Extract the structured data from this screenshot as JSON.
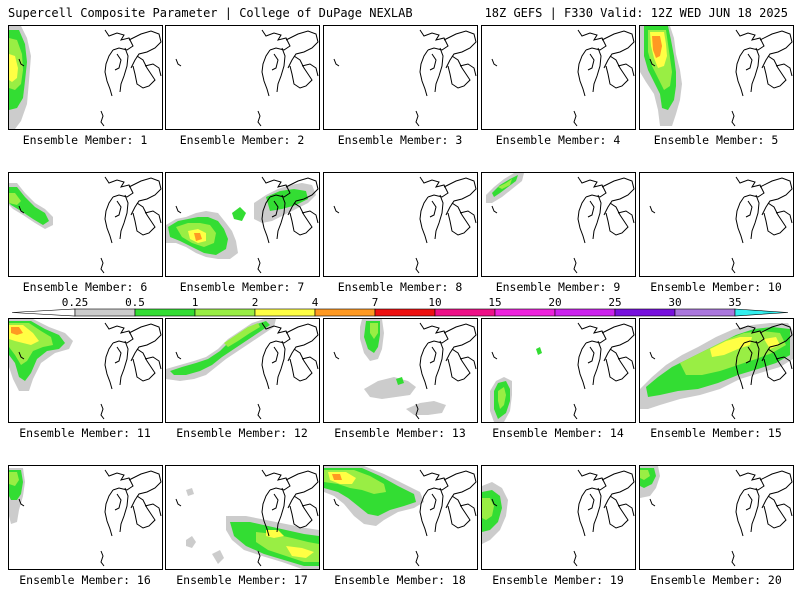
{
  "header": {
    "title": "Supercell Composite Parameter | College of DuPage NEXLAB",
    "run_info": "18Z GEFS | F330 Valid: 12Z WED JUN 18 2025"
  },
  "caption_prefix": "Ensemble Member:",
  "members": [
    {
      "label": "Ensemble Member: 1"
    },
    {
      "label": "Ensemble Member: 2"
    },
    {
      "label": "Ensemble Member: 3"
    },
    {
      "label": "Ensemble Member: 4"
    },
    {
      "label": "Ensemble Member: 5"
    },
    {
      "label": "Ensemble Member: 6"
    },
    {
      "label": "Ensemble Member: 7"
    },
    {
      "label": "Ensemble Member: 8"
    },
    {
      "label": "Ensemble Member: 9"
    },
    {
      "label": "Ensemble Member: 10"
    },
    {
      "label": "Ensemble Member: 11"
    },
    {
      "label": "Ensemble Member: 12"
    },
    {
      "label": "Ensemble Member: 13"
    },
    {
      "label": "Ensemble Member: 14"
    },
    {
      "label": "Ensemble Member: 15"
    },
    {
      "label": "Ensemble Member: 16"
    },
    {
      "label": "Ensemble Member: 17"
    },
    {
      "label": "Ensemble Member: 18"
    },
    {
      "label": "Ensemble Member: 19"
    },
    {
      "label": "Ensemble Member: 20"
    }
  ],
  "colorbar": {
    "ticks": [
      "0.25",
      "0.5",
      "1",
      "2",
      "4",
      "7",
      "10",
      "15",
      "20",
      "25",
      "30",
      "35"
    ],
    "colors": {
      "below": "#ffffff",
      "0.25-0.5": "#cccccc",
      "0.5-1": "#33dd33",
      "1-2": "#99ee44",
      "2-4": "#ffff44",
      "4-7": "#ff9922",
      "7-10": "#ee1111",
      "10-15": "#ee1188",
      "15-20": "#ee22dd",
      "20-25": "#cc22ee",
      "25-30": "#7711dd",
      "30-35": "#aa77dd",
      "above": "#33eeee"
    }
  }
}
